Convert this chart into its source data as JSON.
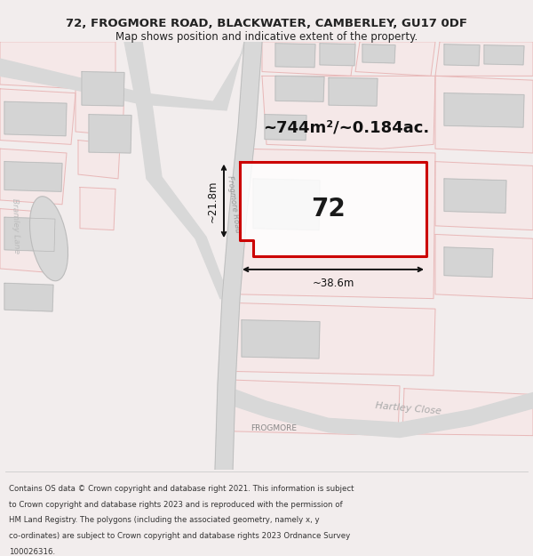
{
  "title": "72, FROGMORE ROAD, BLACKWATER, CAMBERLEY, GU17 0DF",
  "subtitle": "Map shows position and indicative extent of the property.",
  "area_label": "~744m²/~0.184ac.",
  "number_label": "72",
  "width_label": "~38.6m",
  "height_label": "~21.8m",
  "road_label": "Frogmore Road",
  "frogmore_label": "FROGMORE",
  "hartley_label": "Hartley Close",
  "bramley_label": "Bramley Lane",
  "footer_lines": [
    "Contains OS data © Crown copyright and database right 2021. This information is subject",
    "to Crown copyright and database rights 2023 and is reproduced with the permission of",
    "HM Land Registry. The polygons (including the associated geometry, namely x, y",
    "co-ordinates) are subject to Crown copyright and database rights 2023 Ordnance Survey",
    "100026316."
  ],
  "bg_color": "#f7f3f3",
  "plot_color": "#cc0000",
  "dim_color": "#111111",
  "text_color": "#222222",
  "road_gray": "#c8c8c8",
  "road_line": "#b0b0b0",
  "building_fill": "#d4d4d4",
  "building_edge": "#b8b8b8",
  "pink_line": "#e8b8b8",
  "pink_fill": "#f5e8e8"
}
